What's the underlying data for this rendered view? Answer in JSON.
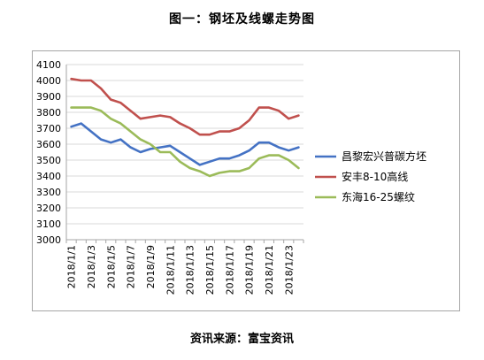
{
  "title": "图一：钢坯及线螺走势图",
  "source": "资讯来源：富宝资讯",
  "chart_data": {
    "type": "line",
    "ylim": [
      3000,
      4100
    ],
    "yticks": [
      3000,
      3100,
      3200,
      3300,
      3400,
      3500,
      3600,
      3700,
      3800,
      3900,
      4000,
      4100
    ],
    "x": [
      "2018/1/1",
      "2018/1/2",
      "2018/1/3",
      "2018/1/4",
      "2018/1/5",
      "2018/1/6",
      "2018/1/7",
      "2018/1/8",
      "2018/1/9",
      "2018/1/10",
      "2018/1/11",
      "2018/1/12",
      "2018/1/13",
      "2018/1/14",
      "2018/1/15",
      "2018/1/16",
      "2018/1/17",
      "2018/1/18",
      "2018/1/19",
      "2018/1/20",
      "2018/1/21",
      "2018/1/22",
      "2018/1/23",
      "2018/1/24"
    ],
    "xtick_labels": [
      "2018/1/1",
      "2018/1/3",
      "2018/1/5",
      "2018/1/7",
      "2018/1/9",
      "2018/1/11",
      "2018/1/13",
      "2018/1/15",
      "2018/1/17",
      "2018/1/19",
      "2018/1/21",
      "2018/1/23"
    ],
    "grid": true,
    "legend_position": "right",
    "series": [
      {
        "name": "昌黎宏兴普碳方坯",
        "color": "#4472c4",
        "values": [
          3710,
          3730,
          3680,
          3630,
          3610,
          3630,
          3580,
          3550,
          3570,
          3580,
          3590,
          3550,
          3510,
          3470,
          3490,
          3510,
          3510,
          3530,
          3560,
          3610,
          3610,
          3580,
          3560,
          3580
        ]
      },
      {
        "name": "安丰8-10高线",
        "color": "#c0504d",
        "values": [
          4010,
          4000,
          4000,
          3950,
          3880,
          3860,
          3810,
          3760,
          3770,
          3780,
          3770,
          3730,
          3700,
          3660,
          3660,
          3680,
          3680,
          3700,
          3750,
          3830,
          3830,
          3810,
          3760,
          3780
        ]
      },
      {
        "name": "东海16-25螺纹",
        "color": "#9bbb59",
        "values": [
          3830,
          3830,
          3830,
          3810,
          3760,
          3730,
          3680,
          3630,
          3600,
          3550,
          3550,
          3490,
          3450,
          3430,
          3400,
          3420,
          3430,
          3430,
          3450,
          3510,
          3530,
          3530,
          3500,
          3450
        ]
      }
    ]
  }
}
